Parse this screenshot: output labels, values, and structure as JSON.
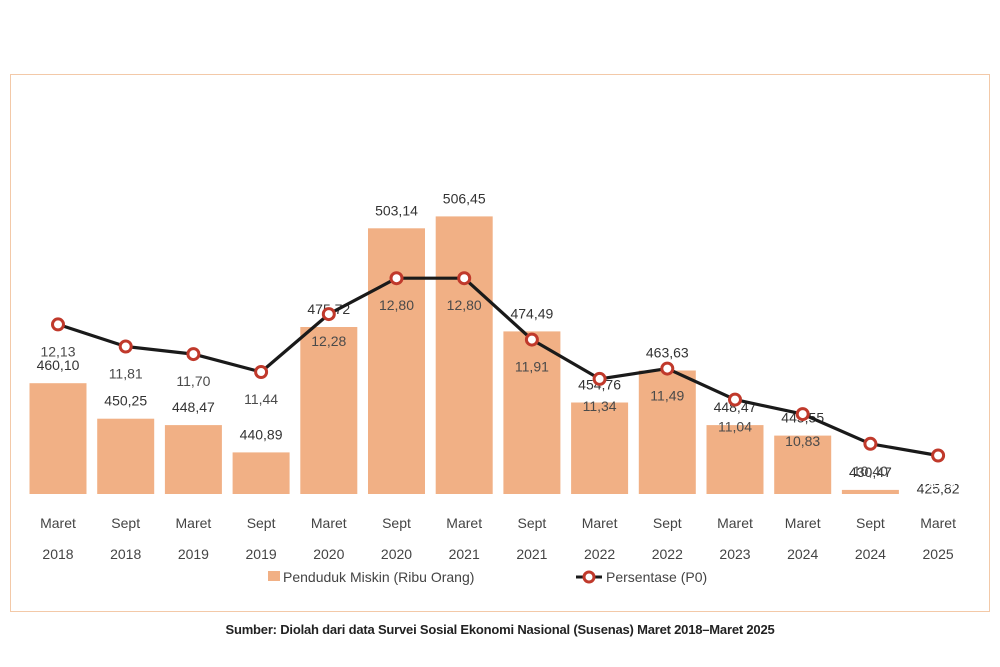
{
  "chart_data": {
    "type": "bar",
    "categories": [
      [
        "Maret",
        "2018"
      ],
      [
        "Sept",
        "2018"
      ],
      [
        "Maret",
        "2019"
      ],
      [
        "Sept",
        "2019"
      ],
      [
        "Maret",
        "2020"
      ],
      [
        "Sept",
        "2020"
      ],
      [
        "Maret",
        "2021"
      ],
      [
        "Sept",
        "2021"
      ],
      [
        "Maret",
        "2022"
      ],
      [
        "Sept",
        "2022"
      ],
      [
        "Maret",
        "2023"
      ],
      [
        "Maret",
        "2024"
      ],
      [
        "Sept",
        "2024"
      ],
      [
        "Maret",
        "2025"
      ]
    ],
    "series": [
      {
        "name": "Penduduk Miskin (Ribu Orang)",
        "type": "bar",
        "values": [
          460.1,
          450.25,
          448.47,
          440.89,
          475.72,
          503.14,
          506.45,
          474.49,
          454.76,
          463.63,
          448.47,
          445.55,
          430.47,
          425.82
        ],
        "labels": [
          "460,10",
          "450,25",
          "448,47",
          "440,89",
          "475,72",
          "503,14",
          "506,45",
          "474,49",
          "454,76",
          "463,63",
          "448,47",
          "445,55",
          "430,47",
          "425,82"
        ],
        "color": "#f1b085",
        "highlight_color": "#c05a18",
        "highlight_index": 13
      },
      {
        "name": "Persentase (P0)",
        "type": "line",
        "values": [
          12.13,
          11.81,
          11.7,
          11.44,
          12.28,
          12.8,
          12.8,
          11.91,
          11.34,
          11.49,
          11.04,
          10.83,
          10.4,
          10.23
        ],
        "labels": [
          "12,13",
          "11,81",
          "11,70",
          "11,44",
          "12,28",
          "12,80",
          "12,80",
          "11,91",
          "11,34",
          "11,49",
          "11,04",
          "10,83",
          "10,40",
          "10,23"
        ],
        "line_color": "#1a1a1a",
        "marker_color": "#c0392b"
      }
    ],
    "legend": {
      "position": "bottom",
      "items": [
        "Penduduk Miskin (Ribu Orang)",
        "Persentase (P0)"
      ]
    },
    "grid": false
  },
  "source_note": "Sumber: Diolah dari data Survei Sosial Ekonomi Nasional (Susenas) Maret 2018–Maret 2025"
}
